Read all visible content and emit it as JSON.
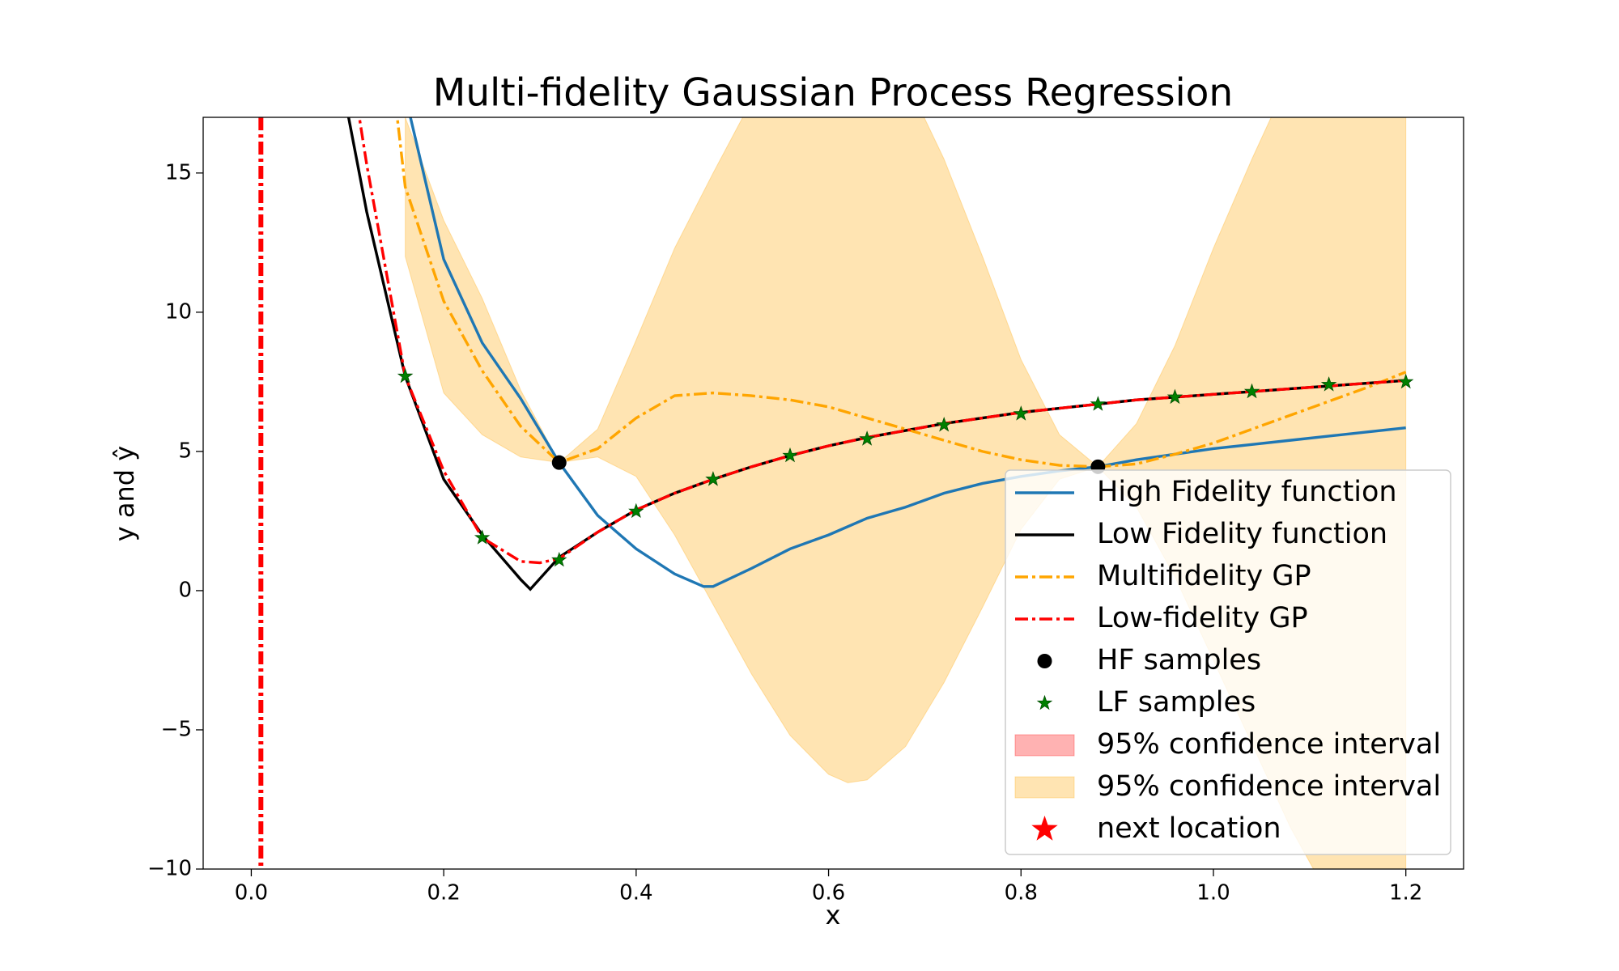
{
  "chart_data": {
    "type": "line",
    "title": "Multi-fidelity Gaussian Process Regression",
    "x_label": "x",
    "y_label": "y and ŷ",
    "xlim": [
      -0.05,
      1.26
    ],
    "ylim": [
      -10,
      17
    ],
    "xticks": [
      {
        "value": 0,
        "label": "0.0"
      },
      0.2,
      0.4,
      0.6,
      0.8,
      {
        "value": 1,
        "label": "1.0"
      },
      1.2
    ],
    "yticks": [
      {
        "value": -10,
        "label": "−10"
      },
      {
        "value": -5,
        "label": "−5"
      },
      0,
      5,
      10,
      15
    ],
    "grid": false,
    "legend": "right",
    "vlines": [
      {
        "x": 0.01,
        "color": "#ff0000",
        "style": "dashdot"
      }
    ],
    "series": [
      {
        "name": "High Fidelity function",
        "kind": "line",
        "style": "solid",
        "color": "#1f77b4",
        "x": [
          0.16,
          0.2,
          0.24,
          0.28,
          0.32,
          0.36,
          0.4,
          0.44,
          0.47,
          0.48,
          0.52,
          0.56,
          0.6,
          0.64,
          0.68,
          0.72,
          0.76,
          0.8,
          0.84,
          0.88,
          0.92,
          0.96,
          1.0,
          1.04,
          1.08,
          1.12,
          1.16,
          1.2
        ],
        "values": [
          17.8,
          11.9,
          8.9,
          6.9,
          4.6,
          2.7,
          1.5,
          0.6,
          0.15,
          0.15,
          0.8,
          1.5,
          2.0,
          2.6,
          3.0,
          3.5,
          3.85,
          4.1,
          4.3,
          4.45,
          4.7,
          4.9,
          5.1,
          5.25,
          5.4,
          5.55,
          5.7,
          5.85
        ]
      },
      {
        "name": "Low Fidelity function",
        "kind": "line",
        "style": "solid",
        "color": "#000000",
        "x": [
          0.1,
          0.12,
          0.16,
          0.2,
          0.24,
          0.28,
          0.29,
          0.32,
          0.36,
          0.4,
          0.44,
          0.48,
          0.52,
          0.56,
          0.6,
          0.64,
          0.68,
          0.72,
          0.76,
          0.8,
          0.84,
          0.88,
          0.92,
          0.96,
          1.0,
          1.04,
          1.08,
          1.12,
          1.16,
          1.2
        ],
        "values": [
          17.2,
          13.6,
          7.7,
          4.0,
          2.0,
          0.4,
          0.05,
          1.2,
          2.1,
          2.9,
          3.5,
          4.0,
          4.45,
          4.85,
          5.2,
          5.5,
          5.75,
          6.0,
          6.2,
          6.4,
          6.55,
          6.7,
          6.85,
          6.95,
          7.05,
          7.15,
          7.25,
          7.35,
          7.45,
          7.55
        ]
      },
      {
        "name": "Multifidelity GP",
        "kind": "line",
        "style": "dashdot",
        "color": "#ffa500",
        "x": [
          0.15,
          0.16,
          0.2,
          0.24,
          0.28,
          0.32,
          0.36,
          0.4,
          0.44,
          0.48,
          0.52,
          0.56,
          0.6,
          0.64,
          0.68,
          0.72,
          0.76,
          0.8,
          0.84,
          0.88,
          0.92,
          0.96,
          1.0,
          1.04,
          1.08,
          1.12,
          1.16,
          1.2
        ],
        "values": [
          17.5,
          14.5,
          10.4,
          7.9,
          5.9,
          4.6,
          5.1,
          6.2,
          7.0,
          7.1,
          7.0,
          6.85,
          6.6,
          6.2,
          5.8,
          5.4,
          5.0,
          4.7,
          4.5,
          4.45,
          4.55,
          4.9,
          5.3,
          5.8,
          6.3,
          6.8,
          7.3,
          7.85
        ]
      },
      {
        "name": "Low-fidelity GP",
        "kind": "line",
        "style": "dashdot",
        "color": "#ff0000",
        "x": [
          0.11,
          0.12,
          0.16,
          0.2,
          0.24,
          0.28,
          0.3,
          0.32,
          0.36,
          0.4,
          0.44,
          0.48,
          0.52,
          0.56,
          0.6,
          0.64,
          0.68,
          0.72,
          0.76,
          0.8,
          0.84,
          0.88,
          0.92,
          0.96,
          1.0,
          1.04,
          1.08,
          1.12,
          1.16,
          1.2
        ],
        "values": [
          17.5,
          15.3,
          7.7,
          4.3,
          1.9,
          1.05,
          1.0,
          1.15,
          2.1,
          2.9,
          3.5,
          4.0,
          4.45,
          4.85,
          5.2,
          5.5,
          5.75,
          6.0,
          6.2,
          6.4,
          6.55,
          6.7,
          6.85,
          6.95,
          7.05,
          7.15,
          7.25,
          7.35,
          7.45,
          7.55
        ]
      },
      {
        "name": "HF samples",
        "kind": "scatter",
        "marker": "circle",
        "color": "#000000",
        "x": [
          0.32,
          0.88
        ],
        "values": [
          4.6,
          4.45
        ]
      },
      {
        "name": "LF samples",
        "kind": "scatter",
        "marker": "star",
        "color": "#008000",
        "x": [
          0.16,
          0.24,
          0.32,
          0.4,
          0.48,
          0.56,
          0.64,
          0.72,
          0.8,
          0.88,
          0.96,
          1.04,
          1.12,
          1.2
        ],
        "values": [
          7.7,
          1.9,
          1.1,
          2.85,
          4.0,
          4.85,
          5.45,
          5.95,
          6.35,
          6.7,
          6.95,
          7.15,
          7.4,
          7.5
        ]
      },
      {
        "name": "95% confidence interval",
        "kind": "band",
        "color": "#ff0000",
        "alpha": 0.3
      },
      {
        "name": "95% confidence interval",
        "kind": "band",
        "color": "#ffa500",
        "alpha": 0.3,
        "x": [
          0.16,
          0.2,
          0.24,
          0.28,
          0.32,
          0.36,
          0.4,
          0.44,
          0.48,
          0.52,
          0.56,
          0.6,
          0.62,
          0.64,
          0.68,
          0.72,
          0.76,
          0.8,
          0.84,
          0.88,
          0.92,
          0.96,
          1.0,
          1.04,
          1.08,
          1.12,
          1.16,
          1.2
        ],
        "lower": [
          12.0,
          7.1,
          5.6,
          4.8,
          4.6,
          4.8,
          4.1,
          2.0,
          -0.5,
          -3.0,
          -5.2,
          -6.6,
          -6.9,
          -6.8,
          -5.6,
          -3.3,
          -0.6,
          2.2,
          4.0,
          4.45,
          3.0,
          0.5,
          -2.5,
          -5.5,
          -8.5,
          -11,
          -13,
          -14
        ],
        "upper": [
          17.0,
          13.3,
          10.5,
          7.2,
          4.6,
          5.8,
          9.0,
          12.3,
          15.0,
          17.6,
          19.5,
          20.5,
          20.6,
          20.3,
          18.4,
          15.5,
          12.0,
          8.3,
          5.6,
          4.45,
          6.0,
          8.8,
          12.3,
          15.5,
          18.5,
          21,
          23,
          24
        ]
      },
      {
        "name": "next location",
        "kind": "scatter",
        "marker": "bigstar",
        "color": "#ff0000"
      }
    ]
  }
}
